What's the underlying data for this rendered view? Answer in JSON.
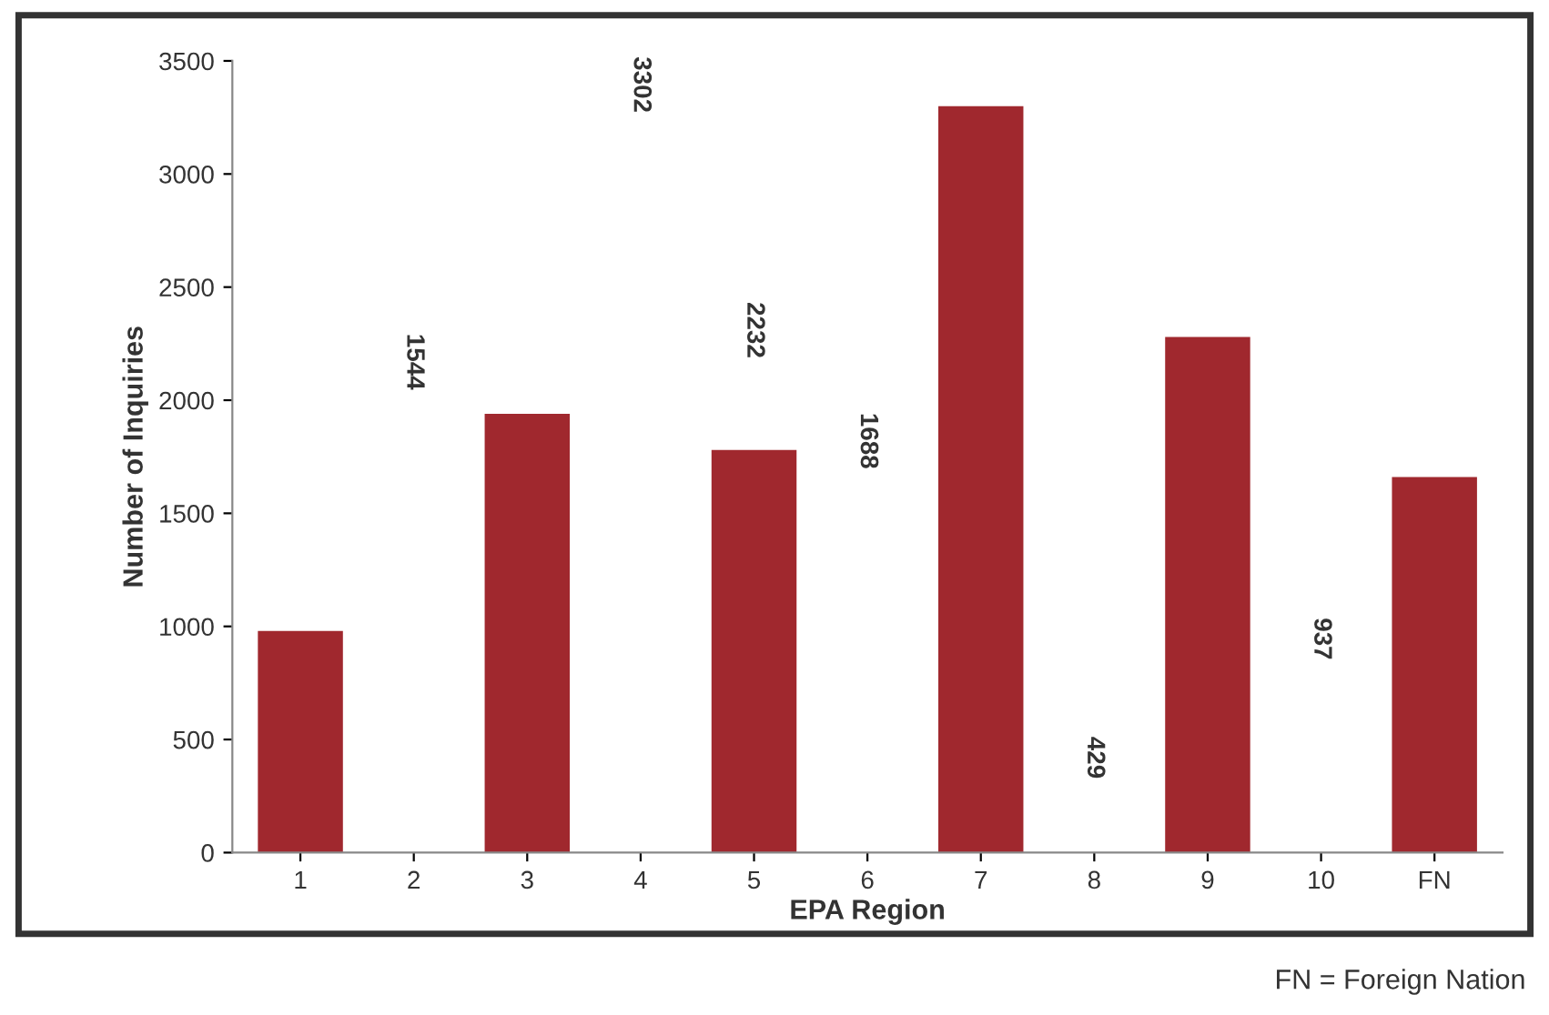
{
  "chart_data": {
    "type": "bar",
    "xlabel": "EPA Region",
    "ylabel": "Number of Inquiries",
    "categories": [
      "1",
      "2",
      "3",
      "4",
      "5",
      "6",
      "7",
      "8",
      "9",
      "10",
      "FN"
    ],
    "values": [
      980,
      null,
      1940,
      null,
      1780,
      null,
      3300,
      null,
      2280,
      null,
      1660
    ],
    "color": "#a0282e",
    "ylim": [
      0,
      3500
    ],
    "yticks": [
      0,
      500,
      1000,
      1500,
      2000,
      2500,
      3000,
      3500
    ],
    "grid": false,
    "annotations": [
      "1544",
      "3302",
      "2232",
      "1688",
      "429",
      "937",
      "FN = Foreign Nation"
    ]
  }
}
